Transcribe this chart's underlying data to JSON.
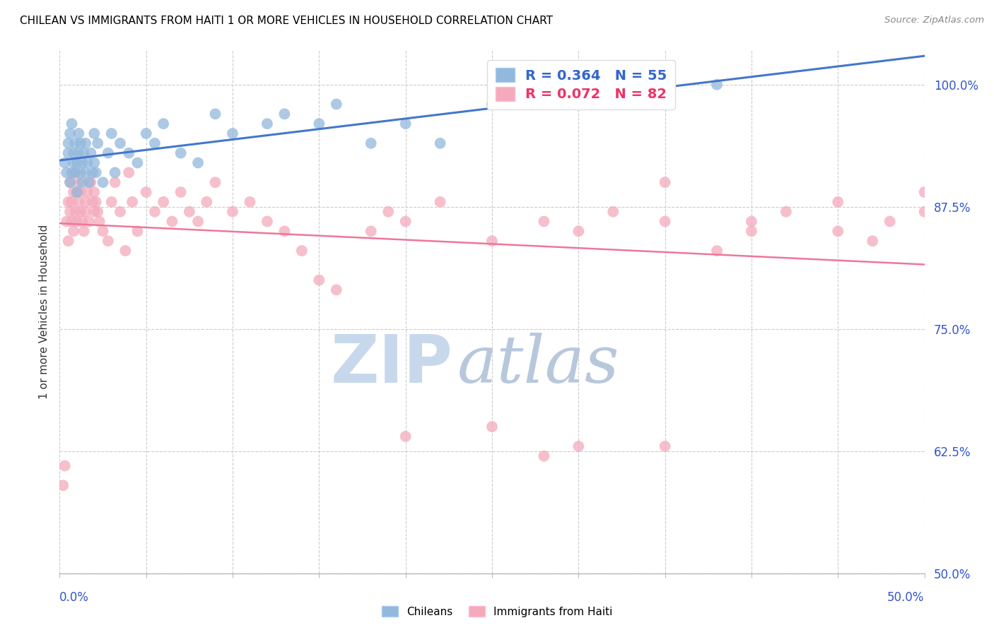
{
  "title": "CHILEAN VS IMMIGRANTS FROM HAITI 1 OR MORE VEHICLES IN HOUSEHOLD CORRELATION CHART",
  "source": "Source: ZipAtlas.com",
  "ylabel": "1 or more Vehicles in Household",
  "yticks": [
    50.0,
    62.5,
    75.0,
    87.5,
    100.0
  ],
  "ytick_labels": [
    "50.0%",
    "62.5%",
    "75.0%",
    "87.5%",
    "100.0%"
  ],
  "xmin": 0.0,
  "xmax": 50.0,
  "ymin": 50.0,
  "ymax": 103.5,
  "legend_blue": "R = 0.364   N = 55",
  "legend_pink": "R = 0.072   N = 82",
  "blue_color": "#92B8DC",
  "pink_color": "#F4AABC",
  "blue_line_color": "#4477CC",
  "pink_line_color": "#EE7799",
  "watermark_zip": "ZIP",
  "watermark_atlas": "atlas",
  "watermark_color_zip": "#C8D8EC",
  "watermark_color_atlas": "#B8C8DC",
  "ch_x": [
    0.3,
    0.4,
    0.5,
    0.5,
    0.6,
    0.6,
    0.7,
    0.7,
    0.8,
    0.8,
    0.9,
    0.9,
    1.0,
    1.0,
    1.1,
    1.1,
    1.2,
    1.2,
    1.3,
    1.3,
    1.4,
    1.5,
    1.5,
    1.6,
    1.7,
    1.8,
    1.9,
    2.0,
    2.0,
    2.1,
    2.2,
    2.5,
    2.8,
    3.0,
    3.2,
    3.5,
    4.0,
    4.5,
    5.0,
    5.5,
    6.0,
    7.0,
    8.0,
    9.0,
    10.0,
    12.0,
    13.0,
    15.0,
    16.0,
    18.0,
    20.0,
    22.0,
    25.0,
    30.0,
    38.0
  ],
  "ch_y": [
    92,
    91,
    93,
    94,
    90,
    95,
    91,
    96,
    92,
    93,
    94,
    91,
    89,
    92,
    95,
    93,
    91,
    94,
    90,
    92,
    93,
    91,
    94,
    92,
    90,
    93,
    91,
    95,
    92,
    91,
    94,
    90,
    93,
    95,
    91,
    94,
    93,
    92,
    95,
    94,
    96,
    93,
    92,
    97,
    95,
    96,
    97,
    96,
    98,
    94,
    96,
    94,
    98,
    99,
    100
  ],
  "ht_x": [
    0.2,
    0.3,
    0.4,
    0.5,
    0.5,
    0.6,
    0.6,
    0.7,
    0.7,
    0.8,
    0.8,
    0.9,
    0.9,
    1.0,
    1.0,
    1.1,
    1.1,
    1.2,
    1.2,
    1.3,
    1.4,
    1.5,
    1.5,
    1.6,
    1.7,
    1.8,
    1.9,
    2.0,
    2.0,
    2.1,
    2.2,
    2.3,
    2.5,
    2.8,
    3.0,
    3.2,
    3.5,
    3.8,
    4.0,
    4.2,
    4.5,
    5.0,
    5.5,
    6.0,
    6.5,
    7.0,
    7.5,
    8.0,
    8.5,
    9.0,
    10.0,
    11.0,
    12.0,
    13.0,
    14.0,
    15.0,
    16.0,
    18.0,
    19.0,
    20.0,
    22.0,
    25.0,
    28.0,
    30.0,
    32.0,
    35.0,
    38.0,
    40.0,
    42.0,
    45.0,
    47.0,
    48.0,
    50.0,
    35.0,
    40.0,
    45.0,
    50.0,
    35.0,
    20.0,
    25.0,
    28.0,
    30.0
  ],
  "ht_y": [
    59,
    61,
    86,
    88,
    84,
    90,
    87,
    88,
    86,
    85,
    89,
    87,
    91,
    86,
    89,
    90,
    88,
    87,
    89,
    86,
    85,
    88,
    87,
    89,
    86,
    90,
    88,
    87,
    89,
    88,
    87,
    86,
    85,
    84,
    88,
    90,
    87,
    83,
    91,
    88,
    85,
    89,
    87,
    88,
    86,
    89,
    87,
    86,
    88,
    90,
    87,
    88,
    86,
    85,
    83,
    80,
    79,
    85,
    87,
    86,
    88,
    84,
    86,
    85,
    87,
    86,
    83,
    85,
    87,
    85,
    84,
    86,
    87,
    90,
    86,
    88,
    89,
    63,
    64,
    65,
    62,
    63
  ]
}
